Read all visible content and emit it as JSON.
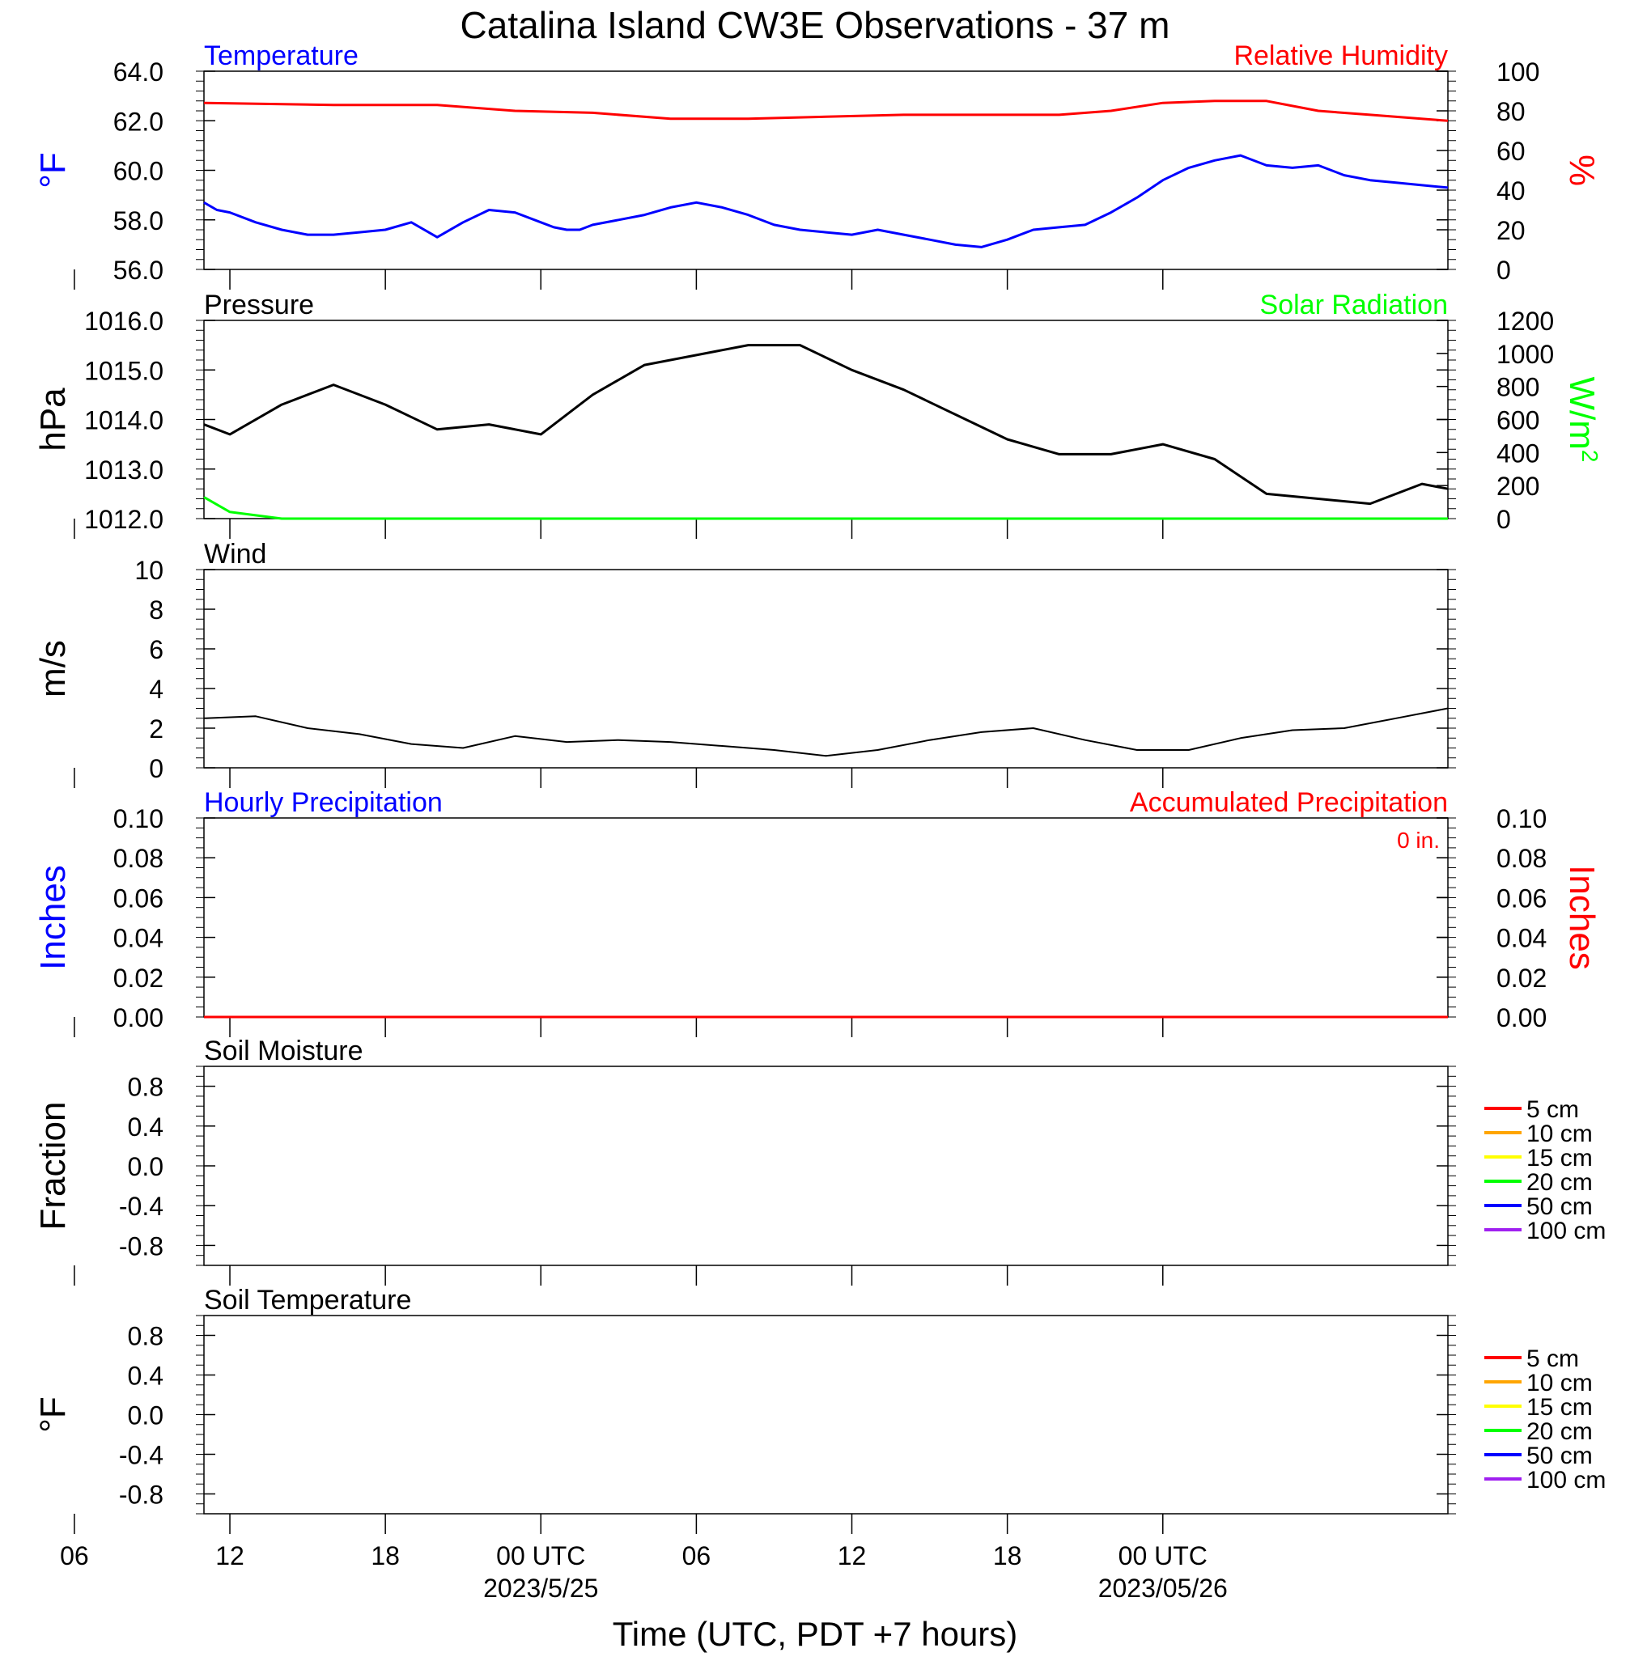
{
  "title": "Catalina Island CW3E Observations - 37 m",
  "xaxis": {
    "title": "Time (UTC, PDT +7 hours)",
    "range_hours": [
      -13.0,
      35.0
    ],
    "ticks": [
      {
        "hour": -18,
        "label": "06"
      },
      {
        "hour": -12,
        "label": "12"
      },
      {
        "hour": -6,
        "label": "18"
      },
      {
        "hour": 0,
        "label": "00 UTC"
      },
      {
        "hour": 6,
        "label": "06"
      },
      {
        "hour": 12,
        "label": "12"
      },
      {
        "hour": 18,
        "label": "18"
      },
      {
        "hour": 24,
        "label": "00 UTC"
      }
    ],
    "date_labels": [
      {
        "hour": 0,
        "label": "2023/5/25"
      },
      {
        "hour": 24,
        "label": "2023/05/26"
      }
    ]
  },
  "colors": {
    "temperature": "#0000ff",
    "humidity": "#ff0000",
    "pressure": "#000000",
    "solar": "#00ff00",
    "wind": "#000000",
    "gust": "#ff0000",
    "precip_hourly": "#0000ff",
    "precip_accum": "#ff0000"
  },
  "chart_data": [
    {
      "type": "line",
      "panel": "temperature-humidity",
      "left_title": "Temperature",
      "right_title": "Relative Humidity",
      "ylabel_left": "°F",
      "ylabel_right": "%",
      "ylim_left": [
        56.0,
        64.0
      ],
      "ylim_right": [
        0,
        100
      ],
      "yticks_left": [
        "56.0",
        "58.0",
        "60.0",
        "62.0",
        "64.0"
      ],
      "yticks_right": [
        "0",
        "20",
        "40",
        "60",
        "80",
        "100"
      ],
      "series": [
        {
          "name": "Temperature",
          "axis": "left",
          "x": [
            -13.0,
            -12.5,
            -12.0,
            -11.0,
            -10.0,
            -9.0,
            -8.0,
            -7.0,
            -6.0,
            -5.0,
            -4.0,
            -3.0,
            -2.0,
            -1.0,
            0.0,
            0.5,
            1.0,
            1.5,
            2.0,
            3.0,
            4.0,
            5.0,
            6.0,
            7.0,
            8.0,
            9.0,
            10.0,
            11.0,
            12.0,
            13.0,
            14.0,
            15.0,
            16.0,
            17.0,
            18.0,
            19.0,
            20.0,
            21.0,
            22.0,
            23.0,
            24.0,
            25.0,
            26.0,
            27.0,
            28.0,
            29.0,
            30.0,
            31.0,
            32.0,
            33.0,
            34.0,
            35.0
          ],
          "y": [
            58.7,
            58.4,
            58.3,
            57.9,
            57.6,
            57.4,
            57.4,
            57.5,
            57.6,
            57.9,
            57.3,
            57.9,
            58.4,
            58.3,
            57.9,
            57.7,
            57.6,
            57.6,
            57.8,
            58.0,
            58.2,
            58.5,
            58.7,
            58.5,
            58.2,
            57.8,
            57.6,
            57.5,
            57.4,
            57.6,
            57.4,
            57.2,
            57.0,
            56.9,
            57.2,
            57.6,
            57.7,
            57.8,
            58.3,
            58.9,
            59.6,
            60.1,
            60.4,
            60.6,
            60.2,
            60.1,
            60.2,
            59.8,
            59.6,
            59.5,
            59.4,
            59.3
          ]
        },
        {
          "name": "Relative Humidity",
          "axis": "right",
          "x": [
            -13.0,
            -8.0,
            -4.0,
            -1.0,
            2.0,
            5.0,
            8.0,
            11.0,
            14.0,
            17.0,
            20.0,
            22.0,
            24.0,
            26.0,
            28.0,
            30.0,
            32.0,
            35.0
          ],
          "y": [
            84,
            83,
            83,
            80,
            79,
            76,
            76,
            77,
            78,
            78,
            78,
            80,
            84,
            85,
            85,
            80,
            78,
            75
          ]
        }
      ]
    },
    {
      "type": "line",
      "panel": "pressure-solar",
      "left_title": "Pressure",
      "right_title": "Solar Radiation",
      "ylabel_left": "hPa",
      "ylabel_right": "W/m",
      "ylabel_right_sup": "2",
      "ylim_left": [
        1012.0,
        1016.0
      ],
      "ylim_right": [
        0,
        1200
      ],
      "yticks_left": [
        "1012.0",
        "1013.0",
        "1014.0",
        "1015.0",
        "1016.0"
      ],
      "yticks_right": [
        "0",
        "200",
        "400",
        "600",
        "800",
        "1000",
        "1200"
      ],
      "series": [
        {
          "name": "Pressure",
          "axis": "left",
          "x": [
            -13.0,
            -12.0,
            -10.0,
            -8.0,
            -6.0,
            -4.0,
            -2.0,
            0.0,
            2.0,
            4.0,
            6.0,
            8.0,
            10.0,
            12.0,
            14.0,
            16.0,
            18.0,
            20.0,
            22.0,
            24.0,
            26.0,
            28.0,
            30.0,
            32.0,
            34.0,
            35.0
          ],
          "y": [
            1013.9,
            1013.7,
            1014.3,
            1014.7,
            1014.3,
            1013.8,
            1013.9,
            1013.7,
            1014.5,
            1015.1,
            1015.3,
            1015.5,
            1015.5,
            1015.0,
            1014.6,
            1014.1,
            1013.6,
            1013.3,
            1013.3,
            1013.5,
            1013.2,
            1012.5,
            1012.4,
            1012.3,
            1012.7,
            1012.6
          ]
        },
        {
          "name": "Solar Radiation",
          "axis": "right",
          "x": [
            -13.0,
            -12.0,
            -10.0,
            -8.0,
            -6.0,
            -4.0,
            -2.0,
            0.0,
            2.0,
            4.0,
            6.0,
            8.0,
            10.0,
            12.0,
            14.0,
            16.0,
            18.0,
            20.0,
            22.0,
            24.0,
            26.0,
            28.0,
            30.0,
            32.0,
            34.0,
            35.0
          ],
          "y": [
            130,
            40,
            0,
            0,
            0,
            0,
            0,
            0,
            0,
            0,
            0,
            0,
            0,
            0,
            0,
            0,
            0,
            0,
            0,
            0,
            0,
            0,
            0,
            0,
            0,
            0
          ]
        }
      ]
    },
    {
      "type": "line",
      "panel": "wind",
      "left_title": "Wind",
      "ylabel_left": "m/s",
      "ylim_left": [
        0,
        10
      ],
      "yticks_left": [
        "0",
        "2",
        "4",
        "6",
        "8",
        "10"
      ],
      "series": [
        {
          "name": "Wind",
          "axis": "left",
          "x": [
            -13.0,
            -11.0,
            -9.0,
            -7.0,
            -5.0,
            -3.0,
            -1.0,
            1.0,
            3.0,
            5.0,
            7.0,
            9.0,
            11.0,
            13.0,
            15.0,
            17.0,
            19.0,
            21.0,
            23.0,
            25.0,
            27.0,
            29.0,
            31.0,
            33.0,
            35.0
          ],
          "y": [
            2.5,
            2.6,
            2.0,
            1.7,
            1.2,
            1.0,
            1.6,
            1.3,
            1.4,
            1.3,
            1.1,
            0.9,
            0.6,
            0.9,
            1.4,
            1.8,
            2.0,
            1.4,
            0.9,
            0.9,
            1.5,
            1.9,
            2.0,
            2.5,
            3.0
          ]
        }
      ]
    },
    {
      "type": "line",
      "panel": "precipitation",
      "left_title": "Hourly Precipitation",
      "right_title": "Accumulated Precipitation",
      "annotation": "0 in.",
      "ylabel_left": "Inches",
      "ylabel_right": "Inches",
      "ylim_left": [
        0.0,
        0.1
      ],
      "ylim_right": [
        0.0,
        0.1
      ],
      "yticks_left": [
        "0.00",
        "0.02",
        "0.04",
        "0.06",
        "0.08",
        "0.10"
      ],
      "yticks_right": [
        "0.00",
        "0.02",
        "0.04",
        "0.06",
        "0.08",
        "0.10"
      ],
      "series": [
        {
          "name": "Accumulated Precipitation",
          "axis": "right",
          "x": [
            -13.0,
            35.0
          ],
          "y": [
            0.0,
            0.0
          ]
        }
      ]
    },
    {
      "type": "line",
      "panel": "soil-moisture",
      "left_title": "Soil Moisture",
      "ylabel_left": "Fraction",
      "ylim_left": [
        -1.0,
        1.0
      ],
      "yticks_left": [
        "-0.8",
        "-0.4",
        "0.0",
        "0.4",
        "0.8"
      ],
      "legend": [
        {
          "label": "5 cm",
          "color": "#ff0000"
        },
        {
          "label": "10 cm",
          "color": "#ffa500"
        },
        {
          "label": "15 cm",
          "color": "#ffff00"
        },
        {
          "label": "20 cm",
          "color": "#00ff00"
        },
        {
          "label": "50 cm",
          "color": "#0000ff"
        },
        {
          "label": "100 cm",
          "color": "#a020f0"
        }
      ],
      "series": []
    },
    {
      "type": "line",
      "panel": "soil-temperature",
      "left_title": "Soil Temperature",
      "ylabel_left": "°F",
      "ylim_left": [
        -1.0,
        1.0
      ],
      "yticks_left": [
        "-0.8",
        "-0.4",
        "0.0",
        "0.4",
        "0.8"
      ],
      "legend": [
        {
          "label": "5 cm",
          "color": "#ff0000"
        },
        {
          "label": "10 cm",
          "color": "#ffa500"
        },
        {
          "label": "15 cm",
          "color": "#ffff00"
        },
        {
          "label": "20 cm",
          "color": "#00ff00"
        },
        {
          "label": "50 cm",
          "color": "#0000ff"
        },
        {
          "label": "100 cm",
          "color": "#a020f0"
        }
      ],
      "series": []
    }
  ]
}
